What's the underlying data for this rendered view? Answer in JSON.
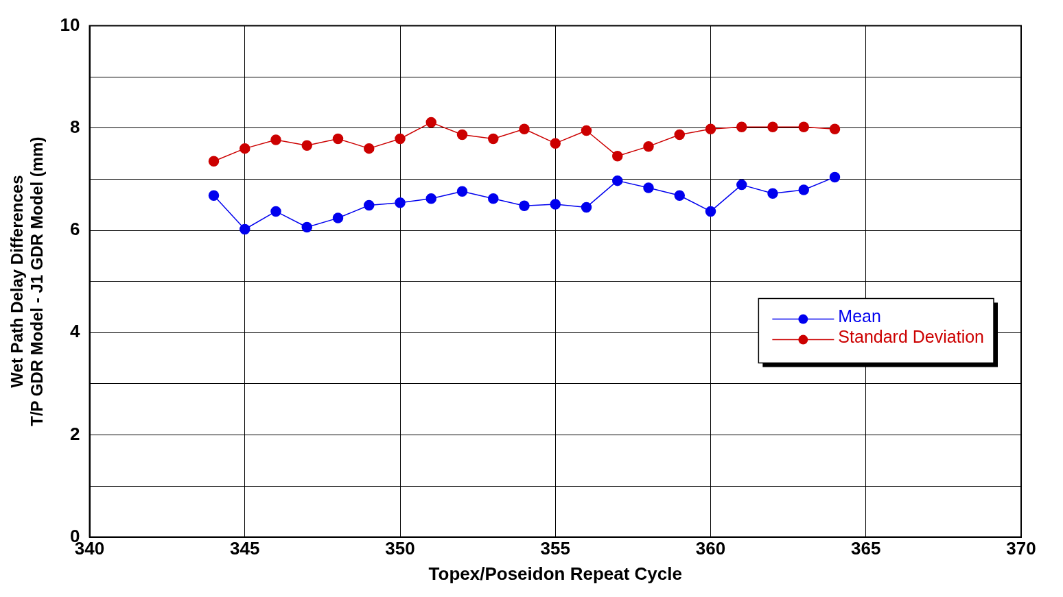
{
  "chart_data": {
    "type": "line",
    "xlabel": "Topex/Poseidon Repeat Cycle",
    "ylabel": "Wet Path Delay Differences\nT/P GDR Model - J1 GDR Model (mm)",
    "x": [
      344,
      345,
      346,
      347,
      348,
      349,
      350,
      351,
      352,
      353,
      354,
      355,
      356,
      357,
      358,
      359,
      360,
      361,
      362,
      363,
      364
    ],
    "series": [
      {
        "name": "Mean",
        "color": "#0000ee",
        "values": [
          6.68,
          6.02,
          6.37,
          6.06,
          6.24,
          6.49,
          6.54,
          6.62,
          6.76,
          6.62,
          6.48,
          6.51,
          6.45,
          6.97,
          6.83,
          6.68,
          6.37,
          6.89,
          6.72,
          6.79,
          7.04
        ]
      },
      {
        "name": "Standard Deviation",
        "color": "#cc0000",
        "values": [
          7.35,
          7.6,
          7.77,
          7.66,
          7.79,
          7.6,
          7.79,
          8.11,
          7.87,
          7.79,
          7.98,
          7.7,
          7.95,
          7.45,
          7.64,
          7.87,
          7.98,
          8.02,
          8.02,
          8.02,
          7.98
        ]
      }
    ],
    "xlim": [
      340,
      370
    ],
    "xticks": [
      340,
      345,
      350,
      355,
      360,
      365,
      370
    ],
    "ylim": [
      0,
      10
    ],
    "yticks": [
      0,
      {
        "value": 1,
        "label": null
      },
      2,
      {
        "value": 3,
        "label": null
      },
      4,
      {
        "value": 5,
        "label": null
      },
      6,
      {
        "value": 7,
        "label": null
      },
      8,
      {
        "value": 9,
        "label": null
      },
      10
    ],
    "grid": true,
    "legend": "right",
    "marker": "circle",
    "line_style": "solid"
  }
}
